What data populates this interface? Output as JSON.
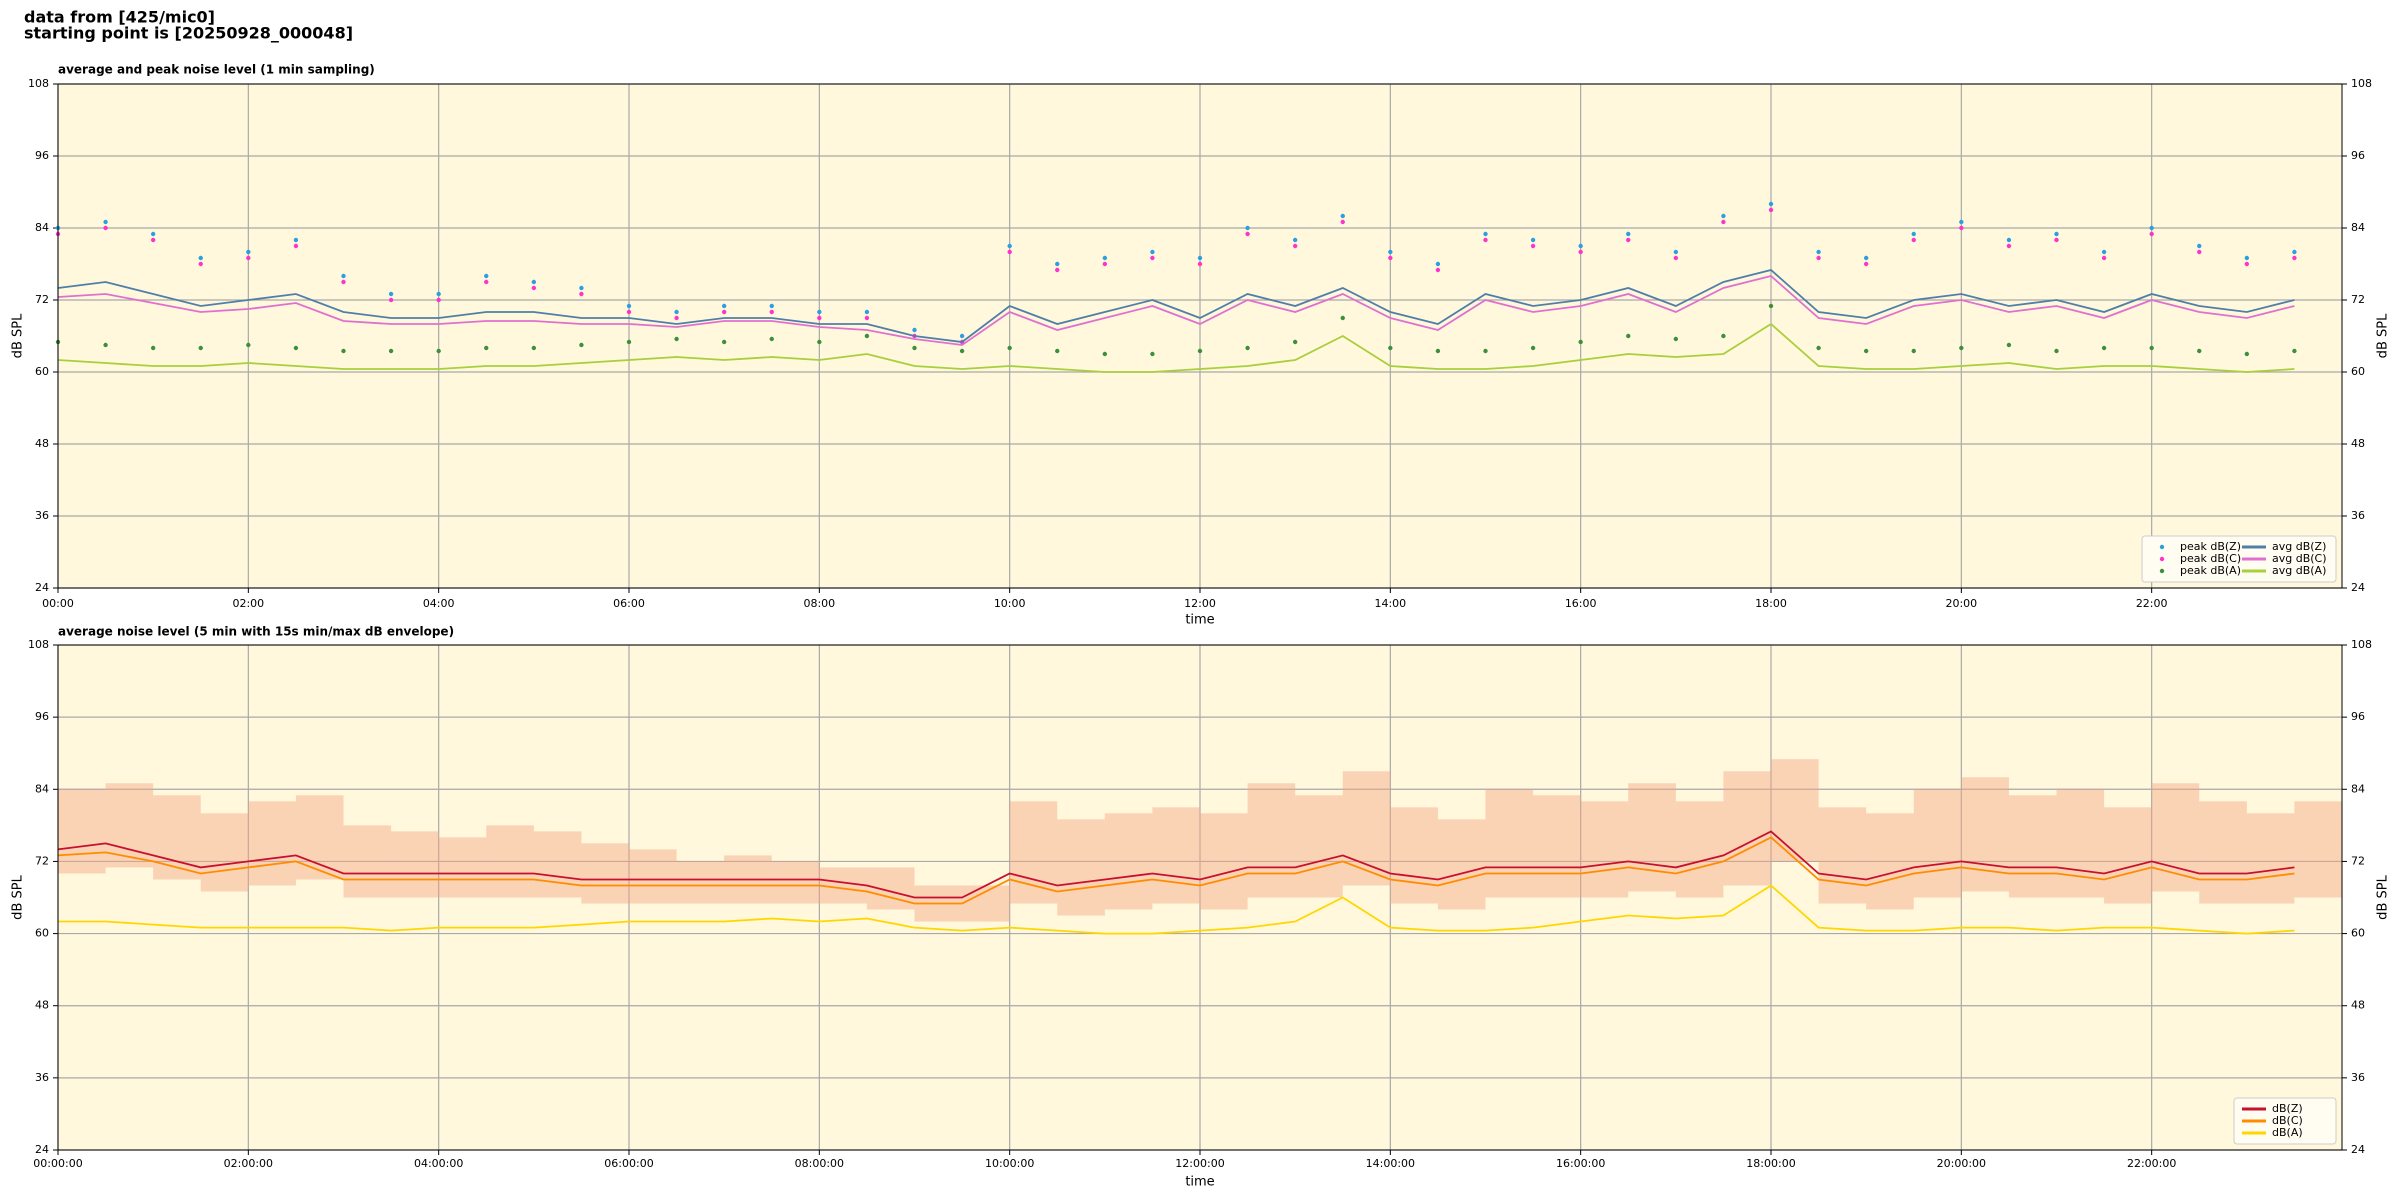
{
  "header": {
    "lines": [
      "data from [425/mic0]",
      "starting point is [20250928_000048]"
    ]
  },
  "chart_data": [
    {
      "type": "line",
      "title": "average and peak noise level (1 min sampling)",
      "xlabel": "time",
      "ylabel": "dB SPL",
      "background": "#fff8dc",
      "grid": true,
      "legend": "lower right",
      "xlim": [
        0,
        24
      ],
      "ylim": [
        24,
        108
      ],
      "yticks": [
        24,
        36,
        48,
        60,
        72,
        84,
        96,
        108
      ],
      "xticks": [
        {
          "value": 0,
          "label": "00:00"
        },
        {
          "value": 2,
          "label": "02:00"
        },
        {
          "value": 4,
          "label": "04:00"
        },
        {
          "value": 6,
          "label": "06:00"
        },
        {
          "value": 8,
          "label": "08:00"
        },
        {
          "value": 10,
          "label": "10:00"
        },
        {
          "value": 12,
          "label": "12:00"
        },
        {
          "value": 14,
          "label": "14:00"
        },
        {
          "value": 16,
          "label": "16:00"
        },
        {
          "value": 18,
          "label": "18:00"
        },
        {
          "value": 20,
          "label": "20:00"
        },
        {
          "value": 22,
          "label": "22:00"
        }
      ],
      "x": [
        0,
        0.5,
        1,
        1.5,
        2,
        2.5,
        3,
        3.5,
        4,
        4.5,
        5,
        5.5,
        6,
        6.5,
        7,
        7.5,
        8,
        8.5,
        9,
        9.5,
        10,
        10.5,
        11,
        11.5,
        12,
        12.5,
        13,
        13.5,
        14,
        14.5,
        15,
        15.5,
        16,
        16.5,
        17,
        17.5,
        18,
        18.5,
        19,
        19.5,
        20,
        20.5,
        21,
        21.5,
        22,
        22.5,
        23,
        23.5
      ],
      "series": [
        {
          "name": "peak dB(Z)",
          "style": "dots",
          "color": "#2b9fe0",
          "values": [
            84,
            85,
            83,
            79,
            80,
            82,
            76,
            73,
            73,
            76,
            75,
            74,
            71,
            70,
            71,
            71,
            70,
            70,
            67,
            66,
            81,
            78,
            79,
            80,
            79,
            84,
            82,
            86,
            80,
            78,
            83,
            82,
            81,
            83,
            80,
            86,
            88,
            80,
            79,
            83,
            85,
            82,
            83,
            80,
            84,
            81,
            79,
            80
          ]
        },
        {
          "name": "peak dB(C)",
          "style": "dots",
          "color": "#ff33cc",
          "values": [
            83,
            84,
            82,
            78,
            79,
            81,
            75,
            72,
            72,
            75,
            74,
            73,
            70,
            69,
            70,
            70,
            69,
            69,
            66,
            65,
            80,
            77,
            78,
            79,
            78,
            83,
            81,
            85,
            79,
            77,
            82,
            81,
            80,
            82,
            79,
            85,
            87,
            79,
            78,
            82,
            84,
            81,
            82,
            79,
            83,
            80,
            78,
            79
          ]
        },
        {
          "name": "peak dB(A)",
          "style": "dots",
          "color": "#3c8f3c",
          "values": [
            65,
            64.5,
            64,
            64,
            64.5,
            64,
            63.5,
            63.5,
            63.5,
            64,
            64,
            64.5,
            65,
            65.5,
            65,
            65.5,
            65,
            66,
            64,
            63.5,
            64,
            63.5,
            63,
            63,
            63.5,
            64,
            65,
            69,
            64,
            63.5,
            63.5,
            64,
            65,
            66,
            65.5,
            66,
            71,
            64,
            63.5,
            63.5,
            64,
            64.5,
            63.5,
            64,
            64,
            63.5,
            63,
            63.5
          ]
        },
        {
          "name": "avg dB(Z)",
          "style": "line",
          "color": "#4f7fa8",
          "values": [
            74,
            75,
            73,
            71,
            72,
            73,
            70,
            69,
            69,
            70,
            70,
            69,
            69,
            68,
            69,
            69,
            68,
            68,
            66,
            65,
            71,
            68,
            70,
            72,
            69,
            73,
            71,
            74,
            70,
            68,
            73,
            71,
            72,
            74,
            71,
            75,
            77,
            70,
            69,
            72,
            73,
            71,
            72,
            70,
            73,
            71,
            70,
            72
          ]
        },
        {
          "name": "avg dB(C)",
          "style": "line",
          "color": "#e070d0",
          "values": [
            72.5,
            73,
            71.5,
            70,
            70.5,
            71.5,
            68.5,
            68,
            68,
            68.5,
            68.5,
            68,
            68,
            67.5,
            68.5,
            68.5,
            67.5,
            67,
            65.5,
            64.5,
            70,
            67,
            69,
            71,
            68,
            72,
            70,
            73,
            69,
            67,
            72,
            70,
            71,
            73,
            70,
            74,
            76,
            69,
            68,
            71,
            72,
            70,
            71,
            69,
            72,
            70,
            69,
            71
          ]
        },
        {
          "name": "avg dB(A)",
          "style": "line",
          "color": "#a8cf3c",
          "values": [
            62,
            61.5,
            61,
            61,
            61.5,
            61,
            60.5,
            60.5,
            60.5,
            61,
            61,
            61.5,
            62,
            62.5,
            62,
            62.5,
            62,
            63,
            61,
            60.5,
            61,
            60.5,
            60,
            60,
            60.5,
            61,
            62,
            66,
            61,
            60.5,
            60.5,
            61,
            62,
            63,
            62.5,
            63,
            68,
            61,
            60.5,
            60.5,
            61,
            61.5,
            60.5,
            61,
            61,
            60.5,
            60,
            60.5
          ]
        }
      ]
    },
    {
      "type": "line",
      "title": "average noise level (5 min with 15s min/max dB envelope)",
      "xlabel": "time",
      "ylabel": "dB SPL",
      "background": "#fff8dc",
      "grid": true,
      "legend": "lower right",
      "xlim": [
        0,
        24
      ],
      "ylim": [
        24,
        108
      ],
      "yticks": [
        24,
        36,
        48,
        60,
        72,
        84,
        96,
        108
      ],
      "xticks": [
        {
          "value": 0,
          "label": "00:00:00"
        },
        {
          "value": 2,
          "label": "02:00:00"
        },
        {
          "value": 4,
          "label": "04:00:00"
        },
        {
          "value": 6,
          "label": "06:00:00"
        },
        {
          "value": 8,
          "label": "08:00:00"
        },
        {
          "value": 10,
          "label": "10:00:00"
        },
        {
          "value": 12,
          "label": "12:00:00"
        },
        {
          "value": 14,
          "label": "14:00:00"
        },
        {
          "value": 16,
          "label": "16:00:00"
        },
        {
          "value": 18,
          "label": "18:00:00"
        },
        {
          "value": 20,
          "label": "20:00:00"
        },
        {
          "value": 22,
          "label": "22:00:00"
        }
      ],
      "x": [
        0,
        0.5,
        1,
        1.5,
        2,
        2.5,
        3,
        3.5,
        4,
        4.5,
        5,
        5.5,
        6,
        6.5,
        7,
        7.5,
        8,
        8.5,
        9,
        9.5,
        10,
        10.5,
        11,
        11.5,
        12,
        12.5,
        13,
        13.5,
        14,
        14.5,
        15,
        15.5,
        16,
        16.5,
        17,
        17.5,
        18,
        18.5,
        19,
        19.5,
        20,
        20.5,
        21,
        21.5,
        22,
        22.5,
        23,
        23.5
      ],
      "envelope": {
        "color": "#f4a582",
        "low": [
          70,
          71,
          69,
          67,
          68,
          69,
          66,
          66,
          66,
          66,
          66,
          65,
          65,
          65,
          65,
          65,
          65,
          64,
          62,
          62,
          65,
          63,
          64,
          65,
          64,
          66,
          66,
          68,
          65,
          64,
          66,
          66,
          66,
          67,
          66,
          68,
          72,
          65,
          64,
          66,
          67,
          66,
          66,
          65,
          67,
          65,
          65,
          66
        ],
        "high": [
          84,
          85,
          83,
          80,
          82,
          83,
          78,
          77,
          76,
          78,
          77,
          75,
          74,
          72,
          73,
          72,
          71,
          71,
          68,
          68,
          82,
          79,
          80,
          81,
          80,
          85,
          83,
          87,
          81,
          79,
          84,
          83,
          82,
          85,
          82,
          87,
          89,
          81,
          80,
          84,
          86,
          83,
          84,
          81,
          85,
          82,
          80,
          82
        ]
      },
      "series": [
        {
          "name": "dB(Z)",
          "style": "line",
          "color": "#c8102e",
          "values": [
            74,
            75,
            73,
            71,
            72,
            73,
            70,
            70,
            70,
            70,
            70,
            69,
            69,
            69,
            69,
            69,
            69,
            68,
            66,
            66,
            70,
            68,
            69,
            70,
            69,
            71,
            71,
            73,
            70,
            69,
            71,
            71,
            71,
            72,
            71,
            73,
            77,
            70,
            69,
            71,
            72,
            71,
            71,
            70,
            72,
            70,
            70,
            71
          ]
        },
        {
          "name": "dB(C)",
          "style": "line",
          "color": "#ff8c00",
          "values": [
            73,
            73.5,
            72,
            70,
            71,
            72,
            69,
            69,
            69,
            69,
            69,
            68,
            68,
            68,
            68,
            68,
            68,
            67,
            65,
            65,
            69,
            67,
            68,
            69,
            68,
            70,
            70,
            72,
            69,
            68,
            70,
            70,
            70,
            71,
            70,
            72,
            76,
            69,
            68,
            70,
            71,
            70,
            70,
            69,
            71,
            69,
            69,
            70
          ]
        },
        {
          "name": "dB(A)",
          "style": "line",
          "color": "#ffd700",
          "values": [
            62,
            62,
            61.5,
            61,
            61,
            61,
            61,
            60.5,
            61,
            61,
            61,
            61.5,
            62,
            62,
            62,
            62.5,
            62,
            62.5,
            61,
            60.5,
            61,
            60.5,
            60,
            60,
            60.5,
            61,
            62,
            66,
            61,
            60.5,
            60.5,
            61,
            62,
            63,
            62.5,
            63,
            68,
            61,
            60.5,
            60.5,
            61,
            61,
            60.5,
            61,
            61,
            60.5,
            60,
            60.5
          ]
        }
      ]
    }
  ]
}
